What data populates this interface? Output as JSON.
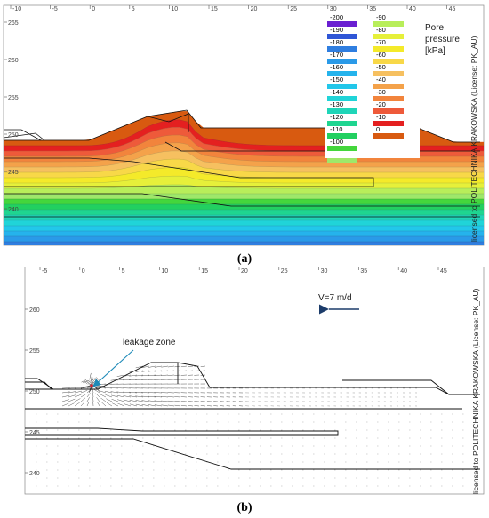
{
  "panel_a": {
    "caption": "(a)",
    "x_ticks": [
      "-10",
      "-5",
      "0",
      "5",
      "10",
      "15",
      "20",
      "25",
      "30",
      "35",
      "40",
      "45"
    ],
    "y_ticks": [
      "265",
      "260",
      "255",
      "250",
      "245",
      "240"
    ],
    "legend_title_line1": "Pore",
    "legend_title_line2": "pressure",
    "legend_unit": "[kPa]",
    "legend_left": [
      {
        "label": "-200",
        "color": "#6a1fd1"
      },
      {
        "label": "-190",
        "color": "#2f56d6"
      },
      {
        "label": "-180",
        "color": "#2f7ee0"
      },
      {
        "label": "-170",
        "color": "#2a9ae8"
      },
      {
        "label": "-160",
        "color": "#25b3ec"
      },
      {
        "label": "-150",
        "color": "#22c7ea"
      },
      {
        "label": "-140",
        "color": "#20d4d8"
      },
      {
        "label": "-130",
        "color": "#1fd5b8"
      },
      {
        "label": "-120",
        "color": "#1fd590"
      },
      {
        "label": "-110",
        "color": "#22d060"
      },
      {
        "label": "-100",
        "color": "#44d63c"
      },
      {
        "label": "",
        "color": "#9ee86a"
      }
    ],
    "legend_right": [
      {
        "label": "-90",
        "color": "#b8ee5a"
      },
      {
        "label": "-80",
        "color": "#e6f03a"
      },
      {
        "label": "-70",
        "color": "#f4ea2a"
      },
      {
        "label": "-60",
        "color": "#f8d848"
      },
      {
        "label": "-50",
        "color": "#f6c060"
      },
      {
        "label": "-40",
        "color": "#f4a24a"
      },
      {
        "label": "-30",
        "color": "#f2843c"
      },
      {
        "label": "-20",
        "color": "#ee5a3a"
      },
      {
        "label": "-10",
        "color": "#e42020"
      },
      {
        "label": "0",
        "color": "#d85a10"
      }
    ],
    "license": "licensed to POLITECHNIKA KRAKOWSKA (License: PK_AU)"
  },
  "panel_b": {
    "caption": "(b)",
    "x_ticks": [
      "-5",
      "0",
      "5",
      "10",
      "15",
      "20",
      "25",
      "30",
      "35",
      "40",
      "45"
    ],
    "y_ticks": [
      "260",
      "255",
      "250",
      "245",
      "240"
    ],
    "velocity_label": "V=7 m/d",
    "leakage_label": "leakage zone",
    "license": "licensed to POLITECHNIKA KRAKOWSKA (License: PK_AU)"
  }
}
